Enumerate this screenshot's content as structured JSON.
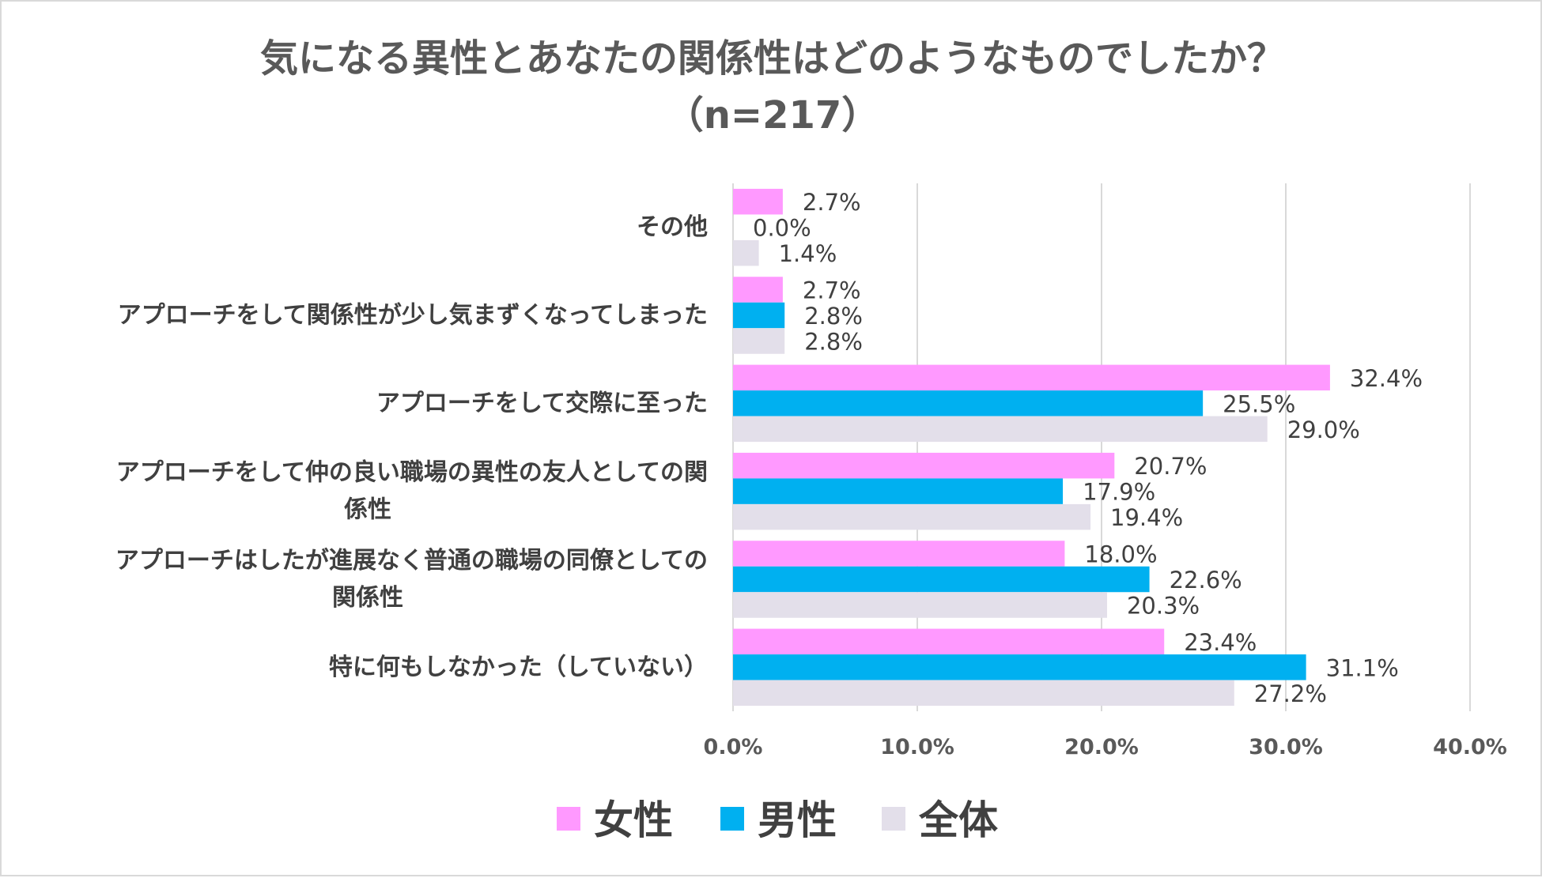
{
  "chart_data": {
    "type": "bar",
    "orientation": "horizontal",
    "title": "気になる異性とあなたの関係性はどのようなものでしたか？",
    "subtitle": "（n=217）",
    "categories": [
      "その他",
      "アプローチをして関係性が少し気まずくなってしまった",
      "アプローチをして交際に至った",
      "アプローチをして仲の良い職場の異性の友人としての関係性",
      "アプローチはしたが進展なく普通の職場の同僚としての関係性",
      "特に何もしなかった（していない）"
    ],
    "category_lines": [
      [
        "その他"
      ],
      [
        "アプローチをして関係性が少し気まずくなってしまった"
      ],
      [
        "アプローチをして交際に至った"
      ],
      [
        "アプローチをして仲の良い職場の異性の友人としての関",
        "係性"
      ],
      [
        "アプローチはしたが進展なく普通の職場の同僚としての",
        "関係性"
      ],
      [
        "特に何もしなかった（していない）"
      ]
    ],
    "series": [
      {
        "name": "女性",
        "color": "#ff99ff",
        "values": [
          2.7,
          2.7,
          32.4,
          20.7,
          18.0,
          23.4
        ]
      },
      {
        "name": "男性",
        "color": "#00b0f0",
        "values": [
          0.0,
          2.8,
          25.5,
          17.9,
          22.6,
          31.1
        ]
      },
      {
        "name": "全体",
        "color": "#e3dfea",
        "values": [
          1.4,
          2.8,
          29.0,
          19.4,
          20.3,
          27.2
        ]
      }
    ],
    "xlim": [
      0,
      40
    ],
    "xticks": [
      0,
      10,
      20,
      30,
      40
    ],
    "tick_labels": [
      "0.0%",
      "10.0%",
      "20.0%",
      "30.0%",
      "40.0%"
    ],
    "value_suffix": "%",
    "grid": true,
    "gridline_color": "#d9d9d9",
    "legend_position": "bottom"
  }
}
